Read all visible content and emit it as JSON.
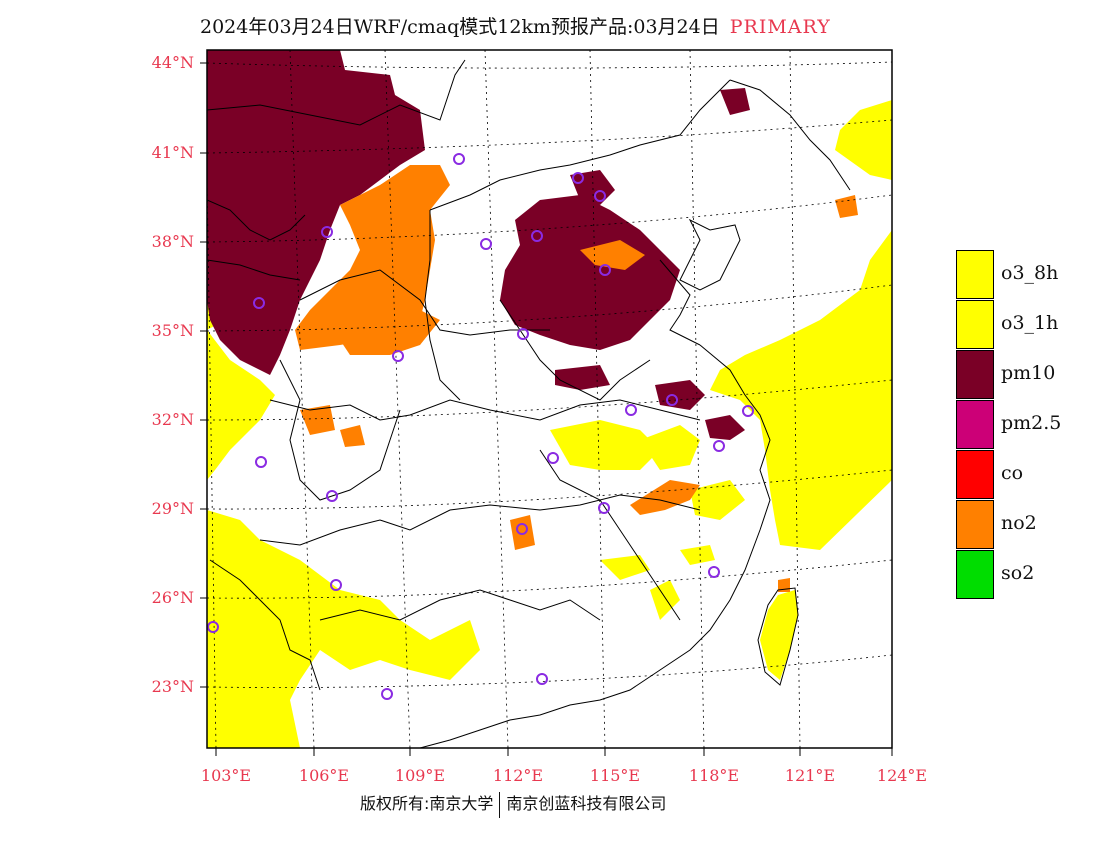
{
  "header": {
    "title": "2024年03月24日WRF/cmaq模式12km预报产品:03月24日",
    "tag": "PRIMARY"
  },
  "axes": {
    "lat_labels": [
      {
        "value": 44,
        "label": "44°N"
      },
      {
        "value": 41,
        "label": "41°N"
      },
      {
        "value": 38,
        "label": "38°N"
      },
      {
        "value": 35,
        "label": "35°N"
      },
      {
        "value": 32,
        "label": "32°N"
      },
      {
        "value": 29,
        "label": "29°N"
      },
      {
        "value": 26,
        "label": "26°N"
      },
      {
        "value": 23,
        "label": "23°N"
      }
    ],
    "lon_labels": [
      {
        "value": 103,
        "label": "103°E"
      },
      {
        "value": 106,
        "label": "106°E"
      },
      {
        "value": 109,
        "label": "109°E"
      },
      {
        "value": 112,
        "label": "112°E"
      },
      {
        "value": 115,
        "label": "115°E"
      },
      {
        "value": 118,
        "label": "118°E"
      },
      {
        "value": 121,
        "label": "121°E"
      },
      {
        "value": 124,
        "label": "124°E"
      }
    ]
  },
  "legend": {
    "items": [
      {
        "label": "o3_8h",
        "color": "#ffff00"
      },
      {
        "label": "o3_1h",
        "color": "#ffff00"
      },
      {
        "label": "pm10",
        "color": "#7a0026"
      },
      {
        "label": "pm2.5",
        "color": "#cc0077"
      },
      {
        "label": "co",
        "color": "#ff0000"
      },
      {
        "label": "no2",
        "color": "#ff8000"
      },
      {
        "label": "so2",
        "color": "#00dd00"
      }
    ]
  },
  "colors": {
    "axis_label": "#e8384f",
    "station_marker": "#8a2be2",
    "boundary": "#000000"
  },
  "footer": {
    "copyright": "版权所有:南京大学",
    "company": "南京创蓝科技有限公司"
  }
}
